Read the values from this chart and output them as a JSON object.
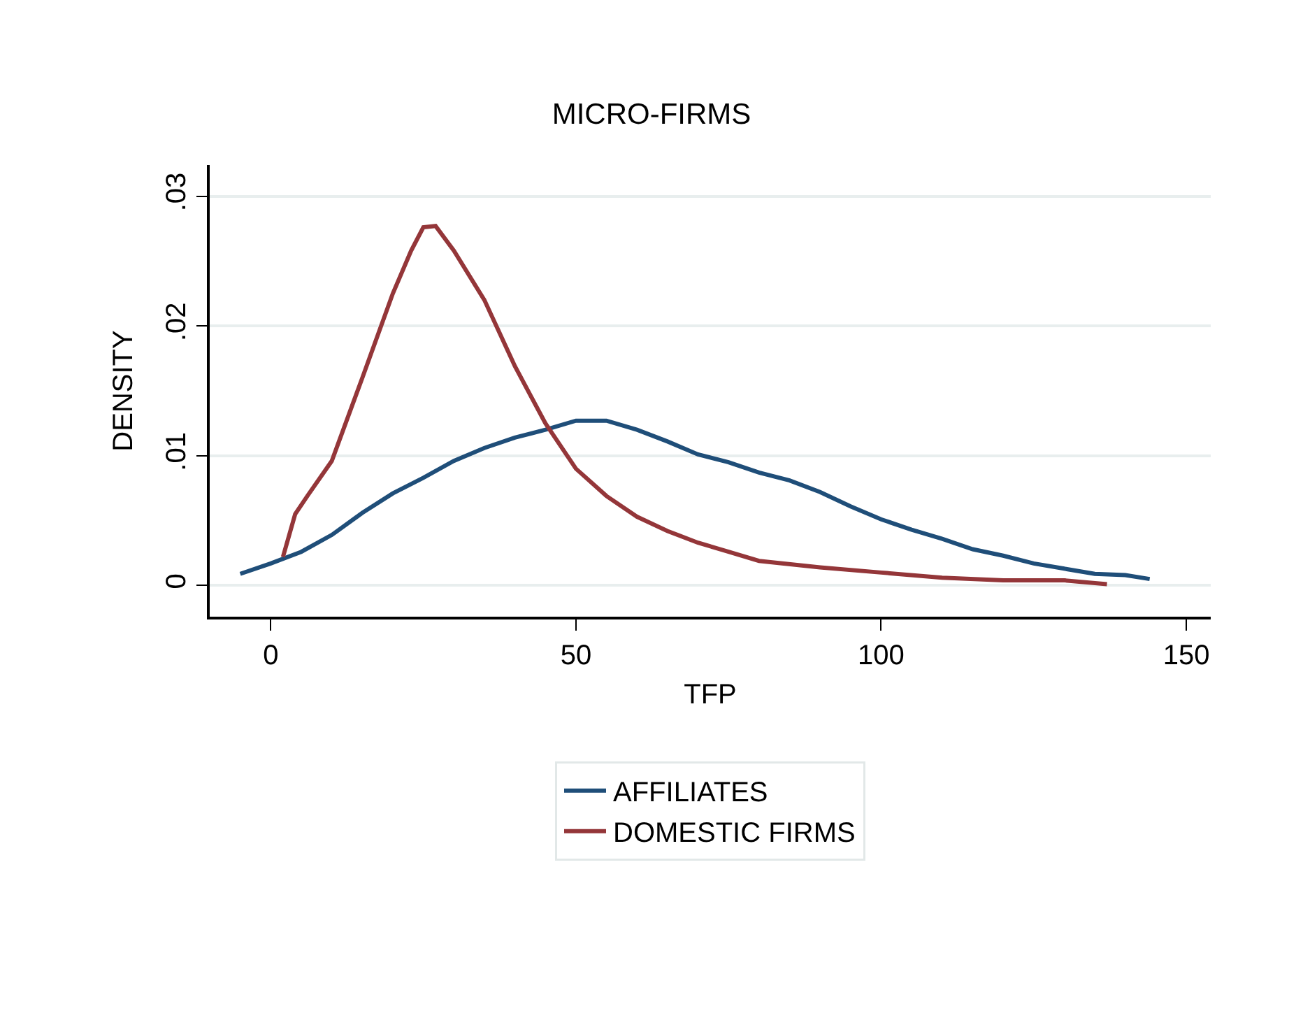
{
  "chart_data": {
    "type": "line",
    "title": "MICRO-FIRMS",
    "xlabel": "TFP",
    "ylabel": "DENSITY",
    "xlim": [
      -10,
      154
    ],
    "xticks": [
      0,
      50,
      100,
      150
    ],
    "ylim": [
      -0.0024,
      0.0324
    ],
    "yticks": [
      0,
      {
        "value": 0.01,
        "label": ".01"
      },
      {
        "value": 0.02,
        "label": ".02"
      },
      {
        "value": 0.03,
        "label": ".03"
      }
    ],
    "grid": "y",
    "legend": "bottom",
    "marker": "none",
    "line_style": "solid",
    "series": [
      {
        "name": "AFFILIATES",
        "color": "#1f4e79",
        "x": [
          -5,
          0,
          5,
          10,
          15,
          20,
          25,
          30,
          35,
          40,
          45,
          50,
          55,
          60,
          65,
          70,
          75,
          80,
          85,
          90,
          95,
          100,
          105,
          110,
          115,
          120,
          125,
          130,
          135,
          140,
          144
        ],
        "values": [
          0.0009,
          0.0017,
          0.0026,
          0.0039,
          0.0056,
          0.0071,
          0.0083,
          0.0096,
          0.0106,
          0.0114,
          0.012,
          0.0127,
          0.0127,
          0.012,
          0.0111,
          0.0101,
          0.0095,
          0.0087,
          0.0081,
          0.0072,
          0.0061,
          0.0051,
          0.0043,
          0.0036,
          0.0028,
          0.0023,
          0.0017,
          0.0013,
          0.0009,
          0.0008,
          0.0005
        ]
      },
      {
        "name": "DOMESTIC FIRMS",
        "color": "#943639",
        "x": [
          2,
          4,
          6,
          10,
          15,
          20,
          23,
          25,
          27,
          30,
          35,
          40,
          45,
          50,
          55,
          60,
          65,
          70,
          75,
          80,
          90,
          100,
          110,
          120,
          130,
          137
        ],
        "values": [
          0.0022,
          0.0055,
          0.0069,
          0.0096,
          0.016,
          0.0225,
          0.0258,
          0.0276,
          0.0277,
          0.0258,
          0.022,
          0.0169,
          0.0125,
          0.009,
          0.0069,
          0.0053,
          0.0042,
          0.0033,
          0.0026,
          0.0019,
          0.0014,
          0.001,
          0.0006,
          0.0004,
          0.0004,
          0.0001
        ]
      }
    ]
  }
}
